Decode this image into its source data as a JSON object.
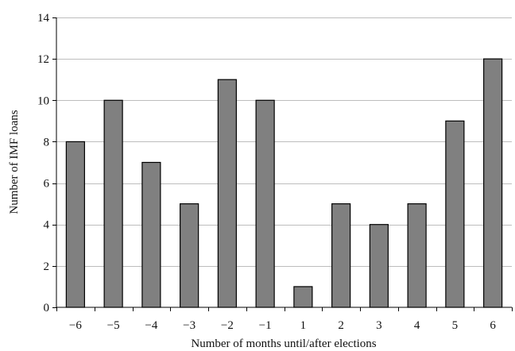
{
  "chart_data": {
    "type": "bar",
    "title": "",
    "xlabel": "Number of months until/after elections",
    "ylabel": "Number of IMF loans",
    "categories": [
      "−6",
      "−5",
      "−4",
      "−3",
      "−2",
      "−1",
      "1",
      "2",
      "3",
      "4",
      "5",
      "6"
    ],
    "values": [
      8,
      10,
      7,
      5,
      11,
      10,
      1,
      5,
      4,
      5,
      9,
      12
    ],
    "ylim": [
      0,
      14
    ],
    "yticks": [
      "0",
      "2",
      "4",
      "6",
      "8",
      "10",
      "12",
      "14"
    ],
    "grid": "horizontal",
    "legend": "none",
    "bar_color": "#808080",
    "bar_edge_color": "#000000",
    "grid_color": "#bdbdbd"
  }
}
